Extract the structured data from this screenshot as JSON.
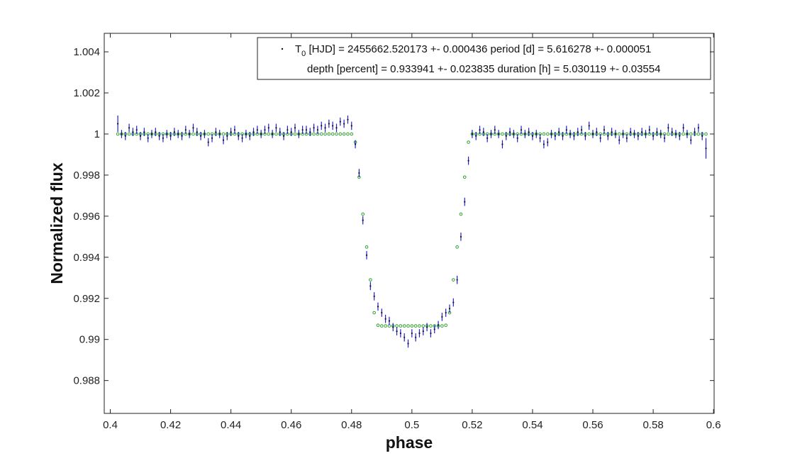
{
  "chart_data": {
    "type": "scatter",
    "xlabel": "phase",
    "ylabel": "Normalized flux",
    "xlim": [
      0.398,
      0.6002
    ],
    "ylim": [
      0.9864,
      1.0049
    ],
    "xticks": [
      0.4,
      0.42,
      0.44,
      0.46,
      0.48,
      0.5,
      0.52,
      0.54,
      0.56,
      0.58,
      0.6
    ],
    "yticks": [
      0.988,
      0.99,
      0.992,
      0.994,
      0.996,
      0.998,
      1,
      1.002,
      1.004
    ],
    "legend": "upper right",
    "x": [
      0.4025,
      0.40375,
      0.405,
      0.40625,
      0.4075,
      0.40875,
      0.41,
      0.41125,
      0.4125,
      0.41375,
      0.415,
      0.41625,
      0.4175,
      0.41875,
      0.42,
      0.42125,
      0.4225,
      0.42375,
      0.425,
      0.42625,
      0.4275,
      0.42875,
      0.43,
      0.43125,
      0.4325,
      0.43375,
      0.435,
      0.43625,
      0.4375,
      0.43875,
      0.44,
      0.44125,
      0.4425,
      0.44375,
      0.445,
      0.44625,
      0.4475,
      0.44875,
      0.45,
      0.45125,
      0.4525,
      0.45375,
      0.455,
      0.45625,
      0.4575,
      0.45875,
      0.46,
      0.46125,
      0.4625,
      0.46375,
      0.465,
      0.46625,
      0.4675,
      0.46875,
      0.47,
      0.47125,
      0.4725,
      0.47375,
      0.475,
      0.47625,
      0.4775,
      0.47875,
      0.48,
      0.48125,
      0.4825,
      0.48375,
      0.485,
      0.48625,
      0.4875,
      0.48875,
      0.49,
      0.49125,
      0.4925,
      0.49375,
      0.495,
      0.49625,
      0.4975,
      0.49875,
      0.5,
      0.50125,
      0.5025,
      0.50375,
      0.505,
      0.50625,
      0.5075,
      0.50875,
      0.51,
      0.51125,
      0.5125,
      0.51375,
      0.515,
      0.51625,
      0.5175,
      0.51875,
      0.52,
      0.52125,
      0.5225,
      0.52375,
      0.525,
      0.52625,
      0.5275,
      0.52875,
      0.53,
      0.53125,
      0.5325,
      0.53375,
      0.535,
      0.53625,
      0.5375,
      0.53875,
      0.54,
      0.54125,
      0.5425,
      0.54375,
      0.545,
      0.54625,
      0.5475,
      0.54875,
      0.55,
      0.55125,
      0.5525,
      0.55375,
      0.555,
      0.55625,
      0.5575,
      0.55875,
      0.56,
      0.56125,
      0.5625,
      0.56375,
      0.565,
      0.56625,
      0.5675,
      0.56875,
      0.57,
      0.57125,
      0.5725,
      0.57375,
      0.575,
      0.57625,
      0.5775,
      0.57875,
      0.58,
      0.58125,
      0.5825,
      0.58375,
      0.585,
      0.58625,
      0.5875,
      0.58875,
      0.59,
      0.59125,
      0.5925,
      0.59375,
      0.595,
      0.59625,
      0.5975
    ],
    "series": [
      {
        "name": "T0 [HJD] = 2455662.520173 +- 0.000436  period [d] = 5.616278 +- 0.000051",
        "color": "#1f1fd0",
        "values": [
          1.0005,
          1.0,
          0.9999,
          1.0003,
          1.0001,
          1.0002,
          0.9999,
          1.0001,
          0.9998,
          1.0,
          1.0001,
          0.9999,
          0.9998,
          1.0,
          0.9999,
          1.0001,
          1.0,
          0.9999,
          1.0002,
          1.0,
          1.0003,
          1.0001,
          0.9999,
          1.0,
          0.9996,
          0.9998,
          1.0001,
          1.0,
          0.9997,
          0.9999,
          1.0001,
          1.0002,
          0.9999,
          0.9998,
          1.0,
          0.9999,
          1.0001,
          1.0002,
          1.0,
          1.0002,
          1.0003,
          1.0,
          1.0003,
          1.0001,
          0.9999,
          1.0002,
          1.0001,
          1.0003,
          1.0,
          1.0002,
          1.0002,
          1.0001,
          1.0003,
          1.0002,
          1.0004,
          1.0003,
          1.0005,
          1.0004,
          1.0003,
          1.0006,
          1.0005,
          1.0007,
          1.0004,
          0.9995,
          0.9981,
          0.9958,
          0.9941,
          0.9926,
          0.9921,
          0.9916,
          0.9913,
          0.991,
          0.9909,
          0.9906,
          0.9904,
          0.9903,
          0.9901,
          0.9898,
          0.9903,
          0.9901,
          0.9903,
          0.9904,
          0.9906,
          0.9903,
          0.9905,
          0.9907,
          0.9911,
          0.9913,
          0.9915,
          0.9918,
          0.9929,
          0.995,
          0.9967,
          0.9987,
          1.0,
          0.9999,
          1.0002,
          1.0001,
          0.9998,
          1.0,
          1.0002,
          1.0,
          0.9995,
          0.9999,
          1.0001,
          1.0,
          0.9998,
          1.0002,
          1.0,
          1.0001,
          0.9999,
          1.0,
          0.9998,
          0.9995,
          0.9996,
          1.0,
          0.9999,
          1.0001,
          0.9999,
          1.0002,
          1.0,
          0.9999,
          1.0001,
          1.0002,
          0.9999,
          1.0004,
          1.0,
          1.0001,
          0.9998,
          1.0002,
          0.9999,
          1.0001,
          1.0,
          0.9997,
          1.0,
          0.9998,
          1.0001,
          1.0,
          0.9999,
          1.0001,
          1.0,
          1.0002,
          0.9999,
          1.0001,
          1.0,
          0.9998,
          1.0003,
          1.0001,
          1.0,
          0.9999,
          1.0003,
          1.0,
          0.9997,
          1.0001,
          1.0003,
          0.9999,
          0.9993
        ],
        "errors": [
          0.0004,
          0.0002,
          0.0002,
          0.0002,
          0.0002,
          0.0002,
          0.0002,
          0.0002,
          0.0002,
          0.0002,
          0.0002,
          0.0002,
          0.0002,
          0.0002,
          0.0002,
          0.0002,
          0.0002,
          0.0002,
          0.0002,
          0.0002,
          0.0002,
          0.0002,
          0.0002,
          0.0002,
          0.0002,
          0.0002,
          0.0002,
          0.0002,
          0.0002,
          0.0002,
          0.0002,
          0.0002,
          0.0002,
          0.0002,
          0.0002,
          0.0002,
          0.0002,
          0.0002,
          0.0002,
          0.0002,
          0.0002,
          0.0002,
          0.0002,
          0.0002,
          0.0002,
          0.0002,
          0.0002,
          0.0002,
          0.0002,
          0.0002,
          0.0002,
          0.0002,
          0.0002,
          0.0002,
          0.0002,
          0.0002,
          0.0002,
          0.0002,
          0.0002,
          0.0002,
          0.0002,
          0.0002,
          0.0002,
          0.0002,
          0.0002,
          0.0002,
          0.0002,
          0.0002,
          0.0002,
          0.0002,
          0.0002,
          0.0002,
          0.0002,
          0.0002,
          0.0002,
          0.0002,
          0.0002,
          0.0002,
          0.0002,
          0.0002,
          0.0002,
          0.0002,
          0.0002,
          0.0002,
          0.0002,
          0.0002,
          0.0002,
          0.0002,
          0.0002,
          0.0002,
          0.0002,
          0.0002,
          0.0002,
          0.0002,
          0.0002,
          0.0002,
          0.0002,
          0.0002,
          0.0002,
          0.0002,
          0.0002,
          0.0002,
          0.0002,
          0.0002,
          0.0002,
          0.0002,
          0.0002,
          0.0002,
          0.0002,
          0.0002,
          0.0002,
          0.0002,
          0.0002,
          0.0002,
          0.0002,
          0.0002,
          0.0002,
          0.0002,
          0.0002,
          0.0002,
          0.0002,
          0.0002,
          0.0002,
          0.0002,
          0.0002,
          0.0002,
          0.0002,
          0.0002,
          0.0002,
          0.0002,
          0.0002,
          0.0002,
          0.0002,
          0.0002,
          0.0002,
          0.0002,
          0.0002,
          0.0002,
          0.0002,
          0.0002,
          0.0002,
          0.0002,
          0.0002,
          0.0002,
          0.0002,
          0.0002,
          0.0002,
          0.0002,
          0.0002,
          0.0002,
          0.0002,
          0.0002,
          0.0002,
          0.0002,
          0.0002,
          0.0002,
          0.0005
        ]
      },
      {
        "name": "depth [percent] = 0.933941 +- 0.023835 duration [h] = 5.030119 +- 0.03554",
        "color": "#2ca02c",
        "values": [
          1,
          1,
          1,
          1,
          1,
          1,
          1,
          1,
          1,
          1,
          1,
          1,
          1,
          1,
          1,
          1,
          1,
          1,
          1,
          1,
          1,
          1,
          1,
          1,
          1,
          1,
          1,
          1,
          1,
          1,
          1,
          1,
          1,
          1,
          1,
          1,
          1,
          1,
          1,
          1,
          1,
          1,
          1,
          1,
          1,
          1,
          1,
          1,
          1,
          1,
          1,
          1,
          1,
          1,
          1,
          1,
          1,
          1,
          1,
          1,
          1,
          1,
          1,
          0.9996,
          0.9979,
          0.9961,
          0.9945,
          0.9929,
          0.9913,
          0.99069,
          0.99066,
          0.99066,
          0.99066,
          0.99066,
          0.99066,
          0.99066,
          0.99066,
          0.99066,
          0.99066,
          0.99066,
          0.99066,
          0.99066,
          0.99066,
          0.99066,
          0.99066,
          0.99066,
          0.99066,
          0.99069,
          0.9913,
          0.9929,
          0.9945,
          0.9961,
          0.9979,
          0.9996,
          1,
          1,
          1,
          1,
          1,
          1,
          1,
          1,
          1,
          1,
          1,
          1,
          1,
          1,
          1,
          1,
          1,
          1,
          1,
          1,
          1,
          1,
          1,
          1,
          1,
          1,
          1,
          1,
          1,
          1,
          1,
          1,
          1,
          1,
          1,
          1,
          1,
          1,
          1,
          1,
          1,
          1,
          1,
          1,
          1,
          1,
          1,
          1,
          1,
          1,
          1,
          1,
          1,
          1,
          1,
          1,
          1,
          1,
          1,
          1,
          1,
          1,
          1
        ]
      }
    ]
  }
}
